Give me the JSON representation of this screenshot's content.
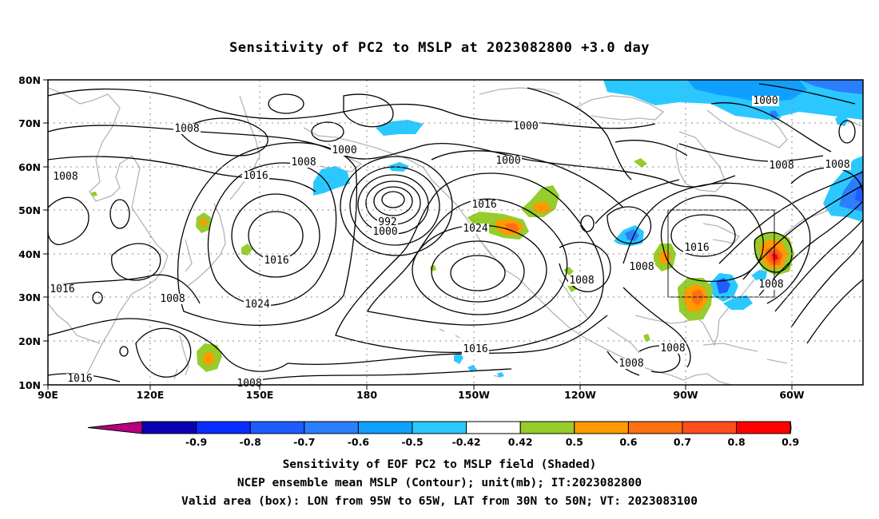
{
  "title": "Sensitivity of PC2 to MSLP at 2023082800 +3.0 day",
  "map": {
    "lon_labels": [
      "90E",
      "120E",
      "150E",
      "180",
      "150W",
      "120W",
      "90W",
      "60W"
    ],
    "lat_labels": [
      "80N",
      "70N",
      "60N",
      "50N",
      "40N",
      "30N",
      "20N",
      "10N"
    ],
    "contour_labels": [
      "1008",
      "1000",
      "1008",
      "1016",
      "1008",
      "1000",
      "1000",
      "1016",
      "1024",
      "1016",
      "1024",
      "992",
      "1000",
      "1016",
      "1008",
      "1016",
      "1008",
      "1008",
      "1016",
      "1008",
      "1008",
      "1008",
      "1008",
      "1000",
      "1008",
      "1016",
      "1008"
    ],
    "valid_box": {
      "lon_from": "95W",
      "lon_to": "65W",
      "lat_from": "30N",
      "lat_to": "50N"
    }
  },
  "colorbar": {
    "labels": [
      "-0.9",
      "-0.8",
      "-0.7",
      "-0.6",
      "-0.5",
      "-0.42",
      "0.42",
      "0.5",
      "0.6",
      "0.7",
      "0.8",
      "0.9"
    ],
    "colors": [
      "#b4007c",
      "#0a00b4",
      "#0a2dff",
      "#1e5cff",
      "#2b7fff",
      "#0fa0ff",
      "#2bc8ff",
      "#ffffff",
      "#96cc2b",
      "#ff9b00",
      "#ff7010",
      "#ff4e1c",
      "#ff0000",
      "#ff9ac8"
    ]
  },
  "captions": {
    "line1": "Sensitivity of EOF PC2 to MSLP field (Shaded)",
    "line2": "NCEP ensemble mean MSLP (Contour); unit(mb); IT:2023082800",
    "line3": "Valid area (box): LON from 95W to 65W, LAT from 30N to 50N; VT: 2023083100"
  }
}
